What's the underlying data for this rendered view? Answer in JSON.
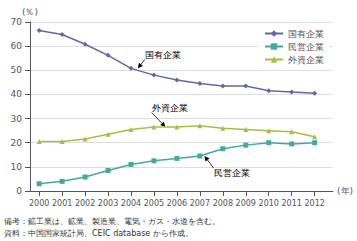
{
  "chart_data": {
    "type": "line",
    "x": [
      2000,
      2001,
      2002,
      2003,
      2004,
      2005,
      2006,
      2007,
      2008,
      2009,
      2010,
      2011,
      2012
    ],
    "xlim": [
      1999.6,
      2012.8
    ],
    "xticks": [
      2000,
      2001,
      2002,
      2003,
      2004,
      2005,
      2006,
      2007,
      2008,
      2009,
      2010,
      2011,
      2012
    ],
    "ylim": [
      0,
      70
    ],
    "yticks": [
      0,
      10,
      20,
      30,
      40,
      50,
      60,
      70
    ],
    "xlabel": "(年)",
    "ylabel": "(％)",
    "grid": true,
    "legend": "upper right",
    "series": [
      {
        "name": "国有企業",
        "color": "#6666aa",
        "marker": "diamond",
        "values": [
          66.5,
          64.8,
          60.8,
          56.2,
          50.8,
          48.0,
          46.0,
          44.5,
          43.5,
          43.5,
          41.5,
          41.0,
          40.5
        ]
      },
      {
        "name": "民営企業",
        "color": "#44aaa0",
        "marker": "square",
        "values": [
          3.0,
          4.0,
          5.8,
          8.5,
          11.0,
          12.5,
          13.5,
          14.5,
          17.5,
          19.0,
          20.0,
          19.5,
          20.0
        ]
      },
      {
        "name": "外資企業",
        "color": "#aabc44",
        "marker": "triangle",
        "values": [
          20.5,
          20.5,
          21.5,
          23.5,
          25.5,
          26.5,
          26.5,
          27.0,
          26.0,
          25.5,
          25.0,
          24.5,
          22.5
        ]
      }
    ],
    "annotations": [
      {
        "text": "国有企業",
        "xy": [
          2004.3,
          50.8
        ],
        "xytext": [
          2004.6,
          54.5
        ]
      },
      {
        "text": "外資企業",
        "xy": [
          2005.5,
          26.5
        ],
        "xytext": [
          2004.9,
          32.5
        ]
      },
      {
        "text": "民営企業",
        "xy": [
          2007.2,
          14.5
        ],
        "xytext": [
          2007.6,
          9.5
        ]
      }
    ],
    "notes": [
      "備考：鉱工業は、鉱業、製造業、電気・ガス・水道を含む。",
      "資料：中国国家統計局、CEIC database から作成。"
    ]
  }
}
